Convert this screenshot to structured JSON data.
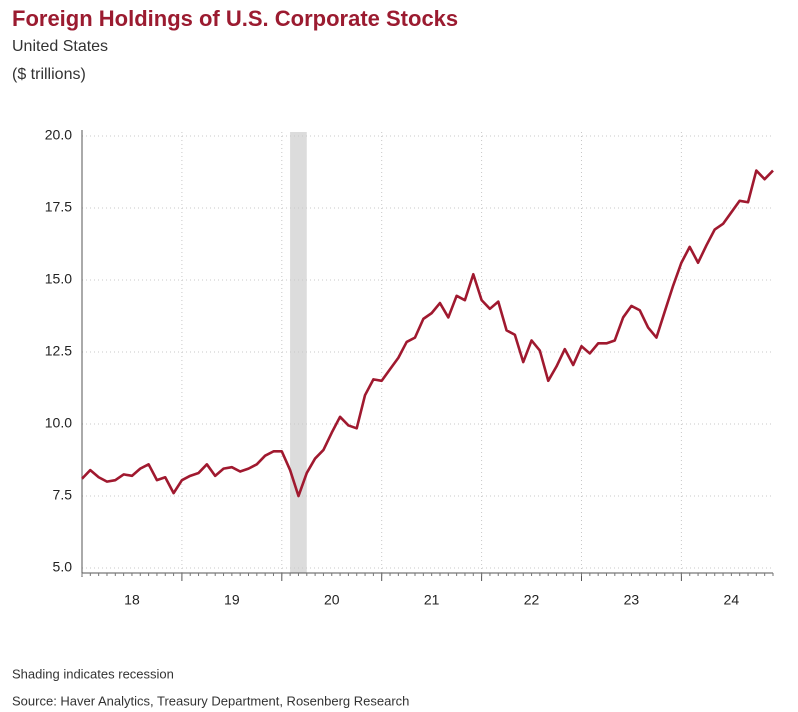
{
  "chart_data": {
    "type": "line",
    "title": "Foreign Holdings of U.S. Corporate Stocks",
    "subtitle": "United States",
    "y_label": "($ trillions)",
    "notes": [
      "Shading indicates recession",
      "Source: Haver Analytics, Treasury Department, Rosenberg Research"
    ],
    "x": [
      2018,
      2018.083,
      2018.167,
      2018.25,
      2018.333,
      2018.417,
      2018.5,
      2018.583,
      2018.667,
      2018.75,
      2018.833,
      2018.917,
      2019,
      2019.083,
      2019.167,
      2019.25,
      2019.333,
      2019.417,
      2019.5,
      2019.583,
      2019.667,
      2019.75,
      2019.833,
      2019.917,
      2020,
      2020.083,
      2020.167,
      2020.25,
      2020.333,
      2020.417,
      2020.5,
      2020.583,
      2020.667,
      2020.75,
      2020.833,
      2020.917,
      2021,
      2021.083,
      2021.167,
      2021.25,
      2021.333,
      2021.417,
      2021.5,
      2021.583,
      2021.667,
      2021.75,
      2021.833,
      2021.917,
      2022,
      2022.083,
      2022.167,
      2022.25,
      2022.333,
      2022.417,
      2022.5,
      2022.583,
      2022.667,
      2022.75,
      2022.833,
      2022.917,
      2023,
      2023.083,
      2023.167,
      2023.25,
      2023.333,
      2023.417,
      2023.5,
      2023.583,
      2023.667,
      2023.75,
      2023.833,
      2023.917,
      2024,
      2024.083,
      2024.167,
      2024.25,
      2024.333,
      2024.417,
      2024.5,
      2024.583,
      2024.667,
      2024.75,
      2024.833,
      2024.917
    ],
    "series": [
      {
        "name": "Foreign Holdings",
        "color": "#a0192f",
        "values": [
          8.1,
          8.4,
          8.15,
          8.0,
          8.05,
          8.25,
          8.2,
          8.45,
          8.6,
          8.05,
          8.15,
          7.6,
          8.05,
          8.2,
          8.3,
          8.6,
          8.2,
          8.45,
          8.5,
          8.35,
          8.45,
          8.6,
          8.9,
          9.05,
          9.05,
          8.4,
          7.5,
          8.3,
          8.8,
          9.1,
          9.7,
          10.25,
          9.95,
          9.85,
          11.0,
          11.55,
          11.5,
          11.9,
          12.3,
          12.85,
          13.0,
          13.65,
          13.85,
          14.2,
          13.7,
          14.45,
          14.3,
          15.2,
          14.3,
          14.0,
          14.25,
          13.25,
          13.1,
          12.15,
          12.9,
          12.55,
          11.5,
          12.0,
          12.6,
          12.05,
          12.7,
          12.45,
          12.8,
          12.8,
          12.9,
          13.7,
          14.1,
          13.95,
          13.35,
          13.0,
          13.9,
          14.8,
          15.6,
          16.15,
          15.6,
          16.2,
          16.75,
          16.95,
          17.35,
          17.75,
          17.7,
          18.8,
          18.5,
          18.8
        ]
      }
    ],
    "recession": [
      2020.083,
      2020.25
    ],
    "recession_color": "#dcdcdc",
    "xlim": [
      2018,
      2024.917
    ],
    "ylim": [
      5,
      20
    ],
    "yticks": [
      {
        "value": 5,
        "label": "5.0"
      },
      {
        "value": 7.5,
        "label": "7.5"
      },
      {
        "value": 10,
        "label": "10.0"
      },
      {
        "value": 12.5,
        "label": "12.5"
      },
      {
        "value": 15,
        "label": "15.0"
      },
      {
        "value": 17.5,
        "label": "17.5"
      },
      {
        "value": 20,
        "label": "20.0"
      }
    ],
    "xticks": [
      {
        "value": 2018.5,
        "label": "18"
      },
      {
        "value": 2019.5,
        "label": "19"
      },
      {
        "value": 2020.5,
        "label": "20"
      },
      {
        "value": 2021.5,
        "label": "21"
      },
      {
        "value": 2022.5,
        "label": "22"
      },
      {
        "value": 2023.5,
        "label": "23"
      },
      {
        "value": 2024.5,
        "label": "24"
      }
    ],
    "xgrid": [
      2019,
      2020,
      2021,
      2022,
      2023,
      2024
    ],
    "grid": true
  }
}
